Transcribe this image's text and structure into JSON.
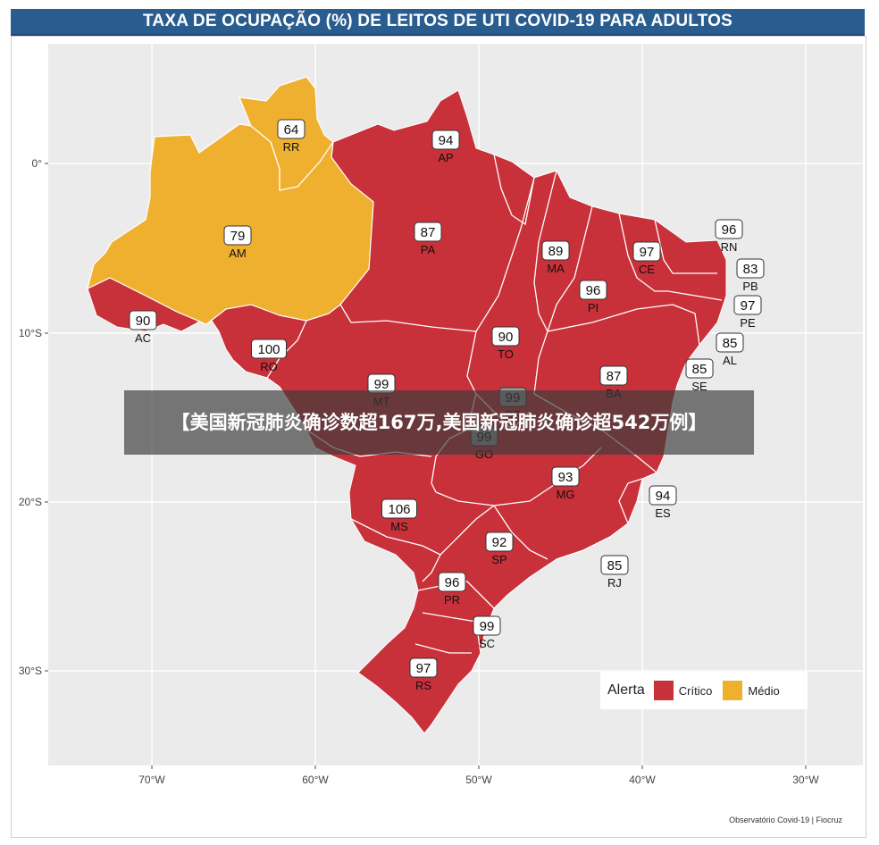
{
  "title": "TAXA DE OCUPAÇÃO (%) DE LEITOS DE UTI COVID-19 PARA ADULTOS",
  "overlay_banner": "【美国新冠肺炎确诊数超167万,美国新冠肺炎确诊超542万例】",
  "credit": "Observatório Covid-19 | Fiocruz",
  "colors": {
    "critico": "#c8313a",
    "medio": "#f0b02f",
    "background": "#ebebeb",
    "title_bar": "#2a5d8f"
  },
  "legend": {
    "title": "Alerta",
    "items": [
      {
        "label": "Crítico",
        "color": "#c8313a"
      },
      {
        "label": "Médio",
        "color": "#f0b02f"
      }
    ]
  },
  "axes": {
    "x_ticks": [
      "70°W",
      "60°W",
      "50°W",
      "40°W",
      "30°W"
    ],
    "y_ticks": [
      "0°",
      "10°S",
      "20°S",
      "30°S"
    ]
  },
  "states": [
    {
      "code": "RR",
      "value": "64",
      "alert": "medio"
    },
    {
      "code": "AP",
      "value": "94",
      "alert": "critico"
    },
    {
      "code": "AM",
      "value": "79",
      "alert": "medio"
    },
    {
      "code": "PA",
      "value": "87",
      "alert": "critico"
    },
    {
      "code": "MA",
      "value": "89",
      "alert": "critico"
    },
    {
      "code": "CE",
      "value": "97",
      "alert": "critico"
    },
    {
      "code": "RN",
      "value": "96",
      "alert": "critico"
    },
    {
      "code": "PB",
      "value": "83",
      "alert": "critico"
    },
    {
      "code": "PI",
      "value": "96",
      "alert": "critico"
    },
    {
      "code": "PE",
      "value": "97",
      "alert": "critico"
    },
    {
      "code": "AC",
      "value": "90",
      "alert": "critico"
    },
    {
      "code": "RO",
      "value": "100",
      "alert": "critico"
    },
    {
      "code": "TO",
      "value": "90",
      "alert": "critico"
    },
    {
      "code": "AL",
      "value": "85",
      "alert": "critico"
    },
    {
      "code": "SE",
      "value": "85",
      "alert": "critico"
    },
    {
      "code": "BA",
      "value": "87",
      "alert": "critico"
    },
    {
      "code": "MT",
      "value": "99",
      "alert": "critico"
    },
    {
      "code": "DF",
      "value": "99",
      "alert": "critico"
    },
    {
      "code": "GO",
      "value": "99",
      "alert": "critico"
    },
    {
      "code": "MG",
      "value": "93",
      "alert": "critico"
    },
    {
      "code": "ES",
      "value": "94",
      "alert": "critico"
    },
    {
      "code": "MS",
      "value": "106",
      "alert": "critico"
    },
    {
      "code": "SP",
      "value": "92",
      "alert": "critico"
    },
    {
      "code": "RJ",
      "value": "85",
      "alert": "critico"
    },
    {
      "code": "PR",
      "value": "96",
      "alert": "critico"
    },
    {
      "code": "SC",
      "value": "99",
      "alert": "critico"
    },
    {
      "code": "RS",
      "value": "97",
      "alert": "critico"
    }
  ]
}
